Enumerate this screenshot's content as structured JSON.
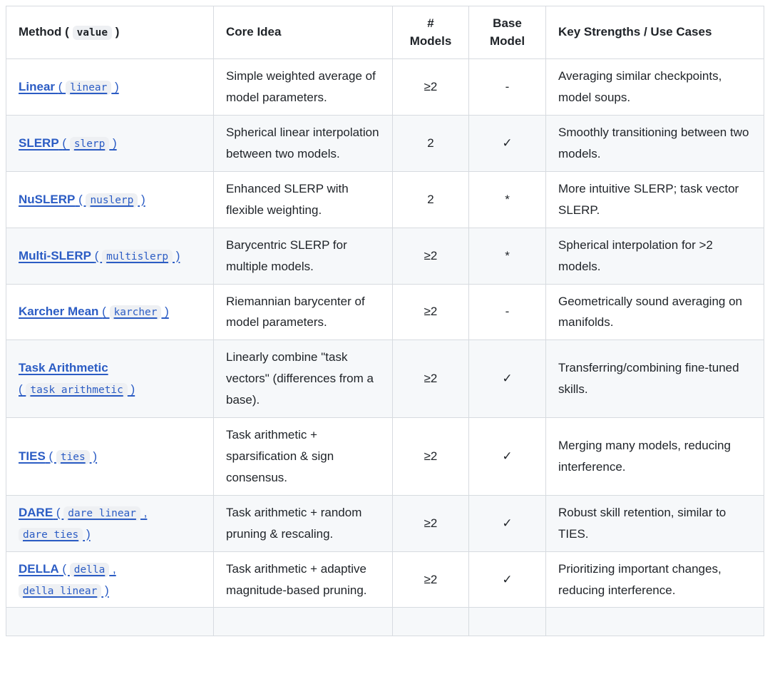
{
  "theme": {
    "page_bg": "#ffffff",
    "text_color": "#1f2328",
    "border_color": "#d7dbe0",
    "stripe_color": "#f6f8fa",
    "badge_bg": "#eef0f3",
    "link_color": "#2b5cc4"
  },
  "table": {
    "punctuation": {
      "open": "(",
      "close": ")",
      "separator": ","
    },
    "header": {
      "method_label": "Method",
      "method_code": "value",
      "core_idea": "Core Idea",
      "num_models": "# Models",
      "base_model": "Base Model",
      "key_strengths": "Key Strengths / Use Cases"
    },
    "rows": [
      {
        "method": "Linear",
        "codes": [
          "linear"
        ],
        "core_idea": "Simple weighted average of model parameters.",
        "num_models": "≥2",
        "base_model": "-",
        "key_strengths": "Averaging similar checkpoints, model soups."
      },
      {
        "method": "SLERP",
        "codes": [
          "slerp"
        ],
        "core_idea": "Spherical linear interpolation between two models.",
        "num_models": "2",
        "base_model": "✓",
        "key_strengths": "Smoothly transitioning between two models."
      },
      {
        "method": "NuSLERP",
        "codes": [
          "nuslerp"
        ],
        "core_idea": "Enhanced SLERP with flexible weighting.",
        "num_models": "2",
        "base_model": "*",
        "key_strengths": "More intuitive SLERP; task vector SLERP."
      },
      {
        "method": "Multi-SLERP",
        "codes": [
          "multislerp"
        ],
        "core_idea": "Barycentric SLERP for multiple models.",
        "num_models": "≥2",
        "base_model": "*",
        "key_strengths": "Spherical interpolation for >2 models."
      },
      {
        "method": "Karcher Mean",
        "codes": [
          "karcher"
        ],
        "core_idea": "Riemannian barycenter of model parameters.",
        "num_models": "≥2",
        "base_model": "-",
        "key_strengths": "Geometrically sound averaging on manifolds."
      },
      {
        "method": "Task Arithmetic",
        "codes": [
          "task_arithmetic"
        ],
        "core_idea": "Linearly combine \"task vectors\" (differences from a base).",
        "num_models": "≥2",
        "base_model": "✓",
        "key_strengths": "Transferring/combining fine-tuned skills."
      },
      {
        "method": "TIES",
        "codes": [
          "ties"
        ],
        "core_idea": "Task arithmetic + sparsification & sign consensus.",
        "num_models": "≥2",
        "base_model": "✓",
        "key_strengths": "Merging many models, reducing interference."
      },
      {
        "method": "DARE",
        "codes": [
          "dare_linear",
          "dare_ties"
        ],
        "core_idea": "Task arithmetic + random pruning & rescaling.",
        "num_models": "≥2",
        "base_model": "✓",
        "key_strengths": "Robust skill retention, similar to TIES."
      },
      {
        "method": "DELLA",
        "codes": [
          "della",
          "della_linear"
        ],
        "core_idea": "Task arithmetic + adaptive magnitude-based pruning.",
        "num_models": "≥2",
        "base_model": "✓",
        "key_strengths": "Prioritizing important changes, reducing interference."
      }
    ]
  }
}
